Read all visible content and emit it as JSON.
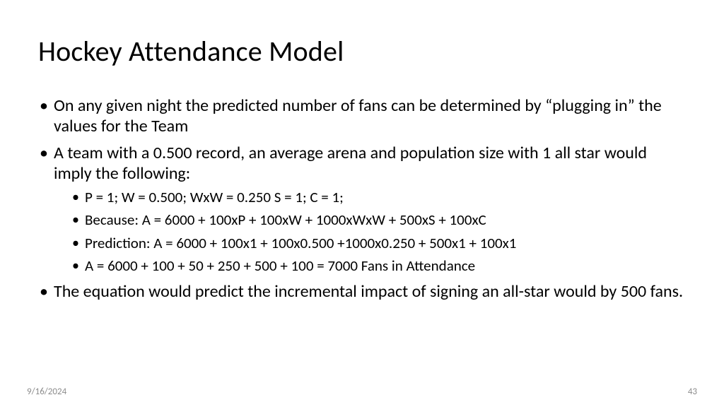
{
  "slide": {
    "title": "Hockey Attendance Model",
    "bullets": [
      {
        "text": "On any given night the predicted number of fans can be determined by “plugging in” the values for the Team"
      },
      {
        "text": "A team with a 0.500 record, an average arena and population size with 1 all star would imply the following:",
        "sub": [
          "P = 1; W = 0.500; WxW = 0.250 S = 1; C = 1;",
          "Because: A = 6000 + 100xP + 100xW + 1000xWxW + 500xS + 100xC",
          "Prediction: A = 6000 + 100x1 + 100x0.500 +1000x0.250 + 500x1 + 100x1",
          "A = 6000 + 100 + 50 + 250 + 500 + 100 = 7000 Fans in Attendance"
        ]
      },
      {
        "text": "The equation would predict the incremental impact of signing an all-star would by 500 fans."
      }
    ],
    "footer": {
      "date": "9/16/2024",
      "page": "43"
    }
  },
  "style": {
    "background_color": "#ffffff",
    "title_color": "#000000",
    "title_fontsize": 40,
    "body_color": "#000000",
    "body_fontsize": 24,
    "sub_fontsize": 21,
    "footer_color": "#8c8c8c",
    "footer_fontsize": 13,
    "font_family": "Calibri"
  }
}
